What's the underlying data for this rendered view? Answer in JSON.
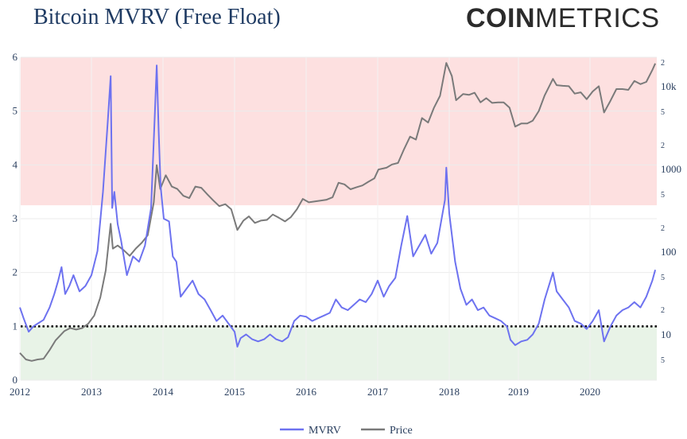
{
  "header": {
    "title": "Bitcoin MVRV (Free Float)",
    "logo_bold": "COIN",
    "logo_light": "METRICS"
  },
  "chart_data": {
    "type": "line",
    "title": "Bitcoin MVRV (Free Float)",
    "x_ticks": [
      "2012",
      "2013",
      "2014",
      "2015",
      "2016",
      "2017",
      "2018",
      "2019",
      "2020"
    ],
    "y_ticks": [
      "0",
      "1",
      "2",
      "3",
      "4",
      "5",
      "6"
    ],
    "y_range": [
      0,
      6
    ],
    "y2_ticks": [
      "5",
      "10",
      "2",
      "5",
      "100",
      "2",
      "5",
      "1000",
      "2",
      "5",
      "10k",
      "2"
    ],
    "y2_scale": "log",
    "y2_range": [
      3,
      25000
    ],
    "reference_line": 1,
    "bands": [
      {
        "from": 3.25,
        "to": 6,
        "color": "#fde0e0"
      },
      {
        "from": 0,
        "to": 1,
        "color": "#e8f3e7"
      }
    ],
    "legend": {
      "position": "bottom-center",
      "items": [
        "MVRV",
        "Price"
      ]
    },
    "series": [
      {
        "name": "MVRV",
        "axis": "left",
        "color": "#6d72f0",
        "points": [
          [
            "2012-01-01",
            1.35
          ],
          [
            "2012-01-20",
            1.15
          ],
          [
            "2012-02-15",
            0.9
          ],
          [
            "2012-03-10",
            1.0
          ],
          [
            "2012-04-01",
            1.05
          ],
          [
            "2012-05-01",
            1.12
          ],
          [
            "2012-06-01",
            1.35
          ],
          [
            "2012-06-25",
            1.6
          ],
          [
            "2012-07-15",
            1.85
          ],
          [
            "2012-08-01",
            2.1
          ],
          [
            "2012-08-20",
            1.6
          ],
          [
            "2012-09-10",
            1.75
          ],
          [
            "2012-10-01",
            1.95
          ],
          [
            "2012-11-01",
            1.65
          ],
          [
            "2012-12-01",
            1.75
          ],
          [
            "2013-01-01",
            1.95
          ],
          [
            "2013-02-01",
            2.4
          ],
          [
            "2013-03-01",
            3.5
          ],
          [
            "2013-03-25",
            4.8
          ],
          [
            "2013-04-09",
            5.65
          ],
          [
            "2013-04-17",
            3.2
          ],
          [
            "2013-04-28",
            3.5
          ],
          [
            "2013-05-15",
            2.9
          ],
          [
            "2013-06-01",
            2.6
          ],
          [
            "2013-07-01",
            1.95
          ],
          [
            "2013-08-01",
            2.3
          ],
          [
            "2013-09-01",
            2.2
          ],
          [
            "2013-10-01",
            2.5
          ],
          [
            "2013-11-01",
            3.2
          ],
          [
            "2013-11-20",
            4.9
          ],
          [
            "2013-11-30",
            5.85
          ],
          [
            "2013-12-10",
            4.6
          ],
          [
            "2013-12-20",
            3.6
          ],
          [
            "2014-01-05",
            3.0
          ],
          [
            "2014-02-01",
            2.95
          ],
          [
            "2014-02-20",
            2.3
          ],
          [
            "2014-03-10",
            2.2
          ],
          [
            "2014-04-01",
            1.55
          ],
          [
            "2014-05-01",
            1.7
          ],
          [
            "2014-06-01",
            1.85
          ],
          [
            "2014-07-01",
            1.6
          ],
          [
            "2014-08-01",
            1.5
          ],
          [
            "2014-09-01",
            1.3
          ],
          [
            "2014-10-01",
            1.1
          ],
          [
            "2014-11-01",
            1.2
          ],
          [
            "2014-12-01",
            1.05
          ],
          [
            "2015-01-01",
            0.9
          ],
          [
            "2015-01-15",
            0.62
          ],
          [
            "2015-02-01",
            0.78
          ],
          [
            "2015-03-01",
            0.85
          ],
          [
            "2015-04-01",
            0.76
          ],
          [
            "2015-05-01",
            0.72
          ],
          [
            "2015-06-01",
            0.76
          ],
          [
            "2015-07-01",
            0.85
          ],
          [
            "2015-08-01",
            0.76
          ],
          [
            "2015-09-01",
            0.72
          ],
          [
            "2015-10-01",
            0.8
          ],
          [
            "2015-11-01",
            1.1
          ],
          [
            "2015-12-01",
            1.2
          ],
          [
            "2016-01-01",
            1.18
          ],
          [
            "2016-02-01",
            1.1
          ],
          [
            "2016-03-01",
            1.15
          ],
          [
            "2016-04-01",
            1.2
          ],
          [
            "2016-05-01",
            1.25
          ],
          [
            "2016-06-01",
            1.5
          ],
          [
            "2016-07-01",
            1.35
          ],
          [
            "2016-08-01",
            1.3
          ],
          [
            "2016-09-01",
            1.4
          ],
          [
            "2016-10-01",
            1.5
          ],
          [
            "2016-11-01",
            1.45
          ],
          [
            "2016-12-01",
            1.6
          ],
          [
            "2017-01-01",
            1.85
          ],
          [
            "2017-02-01",
            1.55
          ],
          [
            "2017-03-01",
            1.75
          ],
          [
            "2017-04-01",
            1.9
          ],
          [
            "2017-05-01",
            2.5
          ],
          [
            "2017-06-01",
            3.05
          ],
          [
            "2017-07-01",
            2.3
          ],
          [
            "2017-08-01",
            2.5
          ],
          [
            "2017-09-01",
            2.7
          ],
          [
            "2017-10-01",
            2.35
          ],
          [
            "2017-11-01",
            2.55
          ],
          [
            "2017-12-10",
            3.35
          ],
          [
            "2017-12-17",
            3.95
          ],
          [
            "2018-01-01",
            3.1
          ],
          [
            "2018-02-01",
            2.2
          ],
          [
            "2018-03-01",
            1.7
          ],
          [
            "2018-04-01",
            1.4
          ],
          [
            "2018-05-01",
            1.5
          ],
          [
            "2018-06-01",
            1.3
          ],
          [
            "2018-07-01",
            1.35
          ],
          [
            "2018-08-01",
            1.2
          ],
          [
            "2018-09-01",
            1.15
          ],
          [
            "2018-10-01",
            1.1
          ],
          [
            "2018-11-01",
            1.0
          ],
          [
            "2018-11-20",
            0.75
          ],
          [
            "2018-12-15",
            0.65
          ],
          [
            "2019-01-15",
            0.72
          ],
          [
            "2019-02-15",
            0.75
          ],
          [
            "2019-03-15",
            0.85
          ],
          [
            "2019-04-15",
            1.05
          ],
          [
            "2019-05-15",
            1.5
          ],
          [
            "2019-06-26",
            2.0
          ],
          [
            "2019-07-15",
            1.65
          ],
          [
            "2019-08-15",
            1.5
          ],
          [
            "2019-09-15",
            1.35
          ],
          [
            "2019-10-15",
            1.1
          ],
          [
            "2019-11-15",
            1.05
          ],
          [
            "2019-12-15",
            0.95
          ],
          [
            "2020-01-15",
            1.1
          ],
          [
            "2020-02-15",
            1.3
          ],
          [
            "2020-03-13",
            0.72
          ],
          [
            "2020-04-15",
            1.0
          ],
          [
            "2020-05-15",
            1.2
          ],
          [
            "2020-06-15",
            1.3
          ],
          [
            "2020-07-15",
            1.35
          ],
          [
            "2020-08-15",
            1.45
          ],
          [
            "2020-09-15",
            1.35
          ],
          [
            "2020-10-15",
            1.55
          ],
          [
            "2020-11-15",
            1.85
          ],
          [
            "2020-11-30",
            2.05
          ]
        ]
      },
      {
        "name": "Price",
        "axis": "right",
        "color": "#7a7a7a",
        "points": [
          [
            "2012-01-01",
            6
          ],
          [
            "2012-02-01",
            5
          ],
          [
            "2012-03-01",
            4.8
          ],
          [
            "2012-04-01",
            5
          ],
          [
            "2012-05-01",
            5.1
          ],
          [
            "2012-06-01",
            6.5
          ],
          [
            "2012-07-01",
            8.5
          ],
          [
            "2012-08-15",
            11
          ],
          [
            "2012-09-15",
            12
          ],
          [
            "2012-10-15",
            11.5
          ],
          [
            "2012-11-15",
            12
          ],
          [
            "2012-12-15",
            13.5
          ],
          [
            "2013-01-15",
            17
          ],
          [
            "2013-02-15",
            28
          ],
          [
            "2013-03-15",
            60
          ],
          [
            "2013-04-09",
            220
          ],
          [
            "2013-04-20",
            110
          ],
          [
            "2013-05-15",
            120
          ],
          [
            "2013-06-15",
            105
          ],
          [
            "2013-07-15",
            90
          ],
          [
            "2013-08-15",
            110
          ],
          [
            "2013-09-15",
            130
          ],
          [
            "2013-10-15",
            160
          ],
          [
            "2013-11-15",
            400
          ],
          [
            "2013-11-30",
            1130
          ],
          [
            "2013-12-18",
            580
          ],
          [
            "2014-01-15",
            850
          ],
          [
            "2014-02-15",
            620
          ],
          [
            "2014-03-15",
            580
          ],
          [
            "2014-04-15",
            480
          ],
          [
            "2014-05-15",
            450
          ],
          [
            "2014-06-15",
            620
          ],
          [
            "2014-07-15",
            600
          ],
          [
            "2014-08-15",
            500
          ],
          [
            "2014-09-15",
            420
          ],
          [
            "2014-10-15",
            360
          ],
          [
            "2014-11-15",
            380
          ],
          [
            "2014-12-15",
            330
          ],
          [
            "2015-01-15",
            185
          ],
          [
            "2015-02-15",
            240
          ],
          [
            "2015-03-15",
            270
          ],
          [
            "2015-04-15",
            225
          ],
          [
            "2015-05-15",
            240
          ],
          [
            "2015-06-15",
            245
          ],
          [
            "2015-07-15",
            285
          ],
          [
            "2015-08-15",
            260
          ],
          [
            "2015-09-15",
            235
          ],
          [
            "2015-10-15",
            265
          ],
          [
            "2015-11-15",
            330
          ],
          [
            "2015-12-15",
            440
          ],
          [
            "2016-01-15",
            400
          ],
          [
            "2016-02-15",
            410
          ],
          [
            "2016-03-15",
            420
          ],
          [
            "2016-04-15",
            430
          ],
          [
            "2016-05-15",
            460
          ],
          [
            "2016-06-15",
            690
          ],
          [
            "2016-07-15",
            660
          ],
          [
            "2016-08-15",
            575
          ],
          [
            "2016-09-15",
            610
          ],
          [
            "2016-10-15",
            640
          ],
          [
            "2016-11-15",
            710
          ],
          [
            "2016-12-15",
            780
          ],
          [
            "2017-01-05",
            1000
          ],
          [
            "2017-02-15",
            1050
          ],
          [
            "2017-03-15",
            1150
          ],
          [
            "2017-04-15",
            1200
          ],
          [
            "2017-05-15",
            1750
          ],
          [
            "2017-06-15",
            2500
          ],
          [
            "2017-07-15",
            2300
          ],
          [
            "2017-08-15",
            4200
          ],
          [
            "2017-09-15",
            3700
          ],
          [
            "2017-10-15",
            5600
          ],
          [
            "2017-11-15",
            7800
          ],
          [
            "2017-12-17",
            19500
          ],
          [
            "2018-01-15",
            13500
          ],
          [
            "2018-02-06",
            6900
          ],
          [
            "2018-03-15",
            8200
          ],
          [
            "2018-04-15",
            8000
          ],
          [
            "2018-05-15",
            8500
          ],
          [
            "2018-06-15",
            6500
          ],
          [
            "2018-07-15",
            7300
          ],
          [
            "2018-08-15",
            6400
          ],
          [
            "2018-09-15",
            6500
          ],
          [
            "2018-10-15",
            6500
          ],
          [
            "2018-11-15",
            5600
          ],
          [
            "2018-12-15",
            3300
          ],
          [
            "2019-01-15",
            3600
          ],
          [
            "2019-02-15",
            3600
          ],
          [
            "2019-03-15",
            3900
          ],
          [
            "2019-04-15",
            5100
          ],
          [
            "2019-05-15",
            7900
          ],
          [
            "2019-06-26",
            12500
          ],
          [
            "2019-07-15",
            10500
          ],
          [
            "2019-08-15",
            10300
          ],
          [
            "2019-09-15",
            10200
          ],
          [
            "2019-10-15",
            8300
          ],
          [
            "2019-11-15",
            8600
          ],
          [
            "2019-12-15",
            7100
          ],
          [
            "2020-01-15",
            8800
          ],
          [
            "2020-02-15",
            10200
          ],
          [
            "2020-03-13",
            4900
          ],
          [
            "2020-04-15",
            6800
          ],
          [
            "2020-05-15",
            9400
          ],
          [
            "2020-06-15",
            9400
          ],
          [
            "2020-07-15",
            9200
          ],
          [
            "2020-08-15",
            11800
          ],
          [
            "2020-09-15",
            10800
          ],
          [
            "2020-10-15",
            11500
          ],
          [
            "2020-11-15",
            16000
          ],
          [
            "2020-11-30",
            19200
          ]
        ]
      }
    ]
  }
}
